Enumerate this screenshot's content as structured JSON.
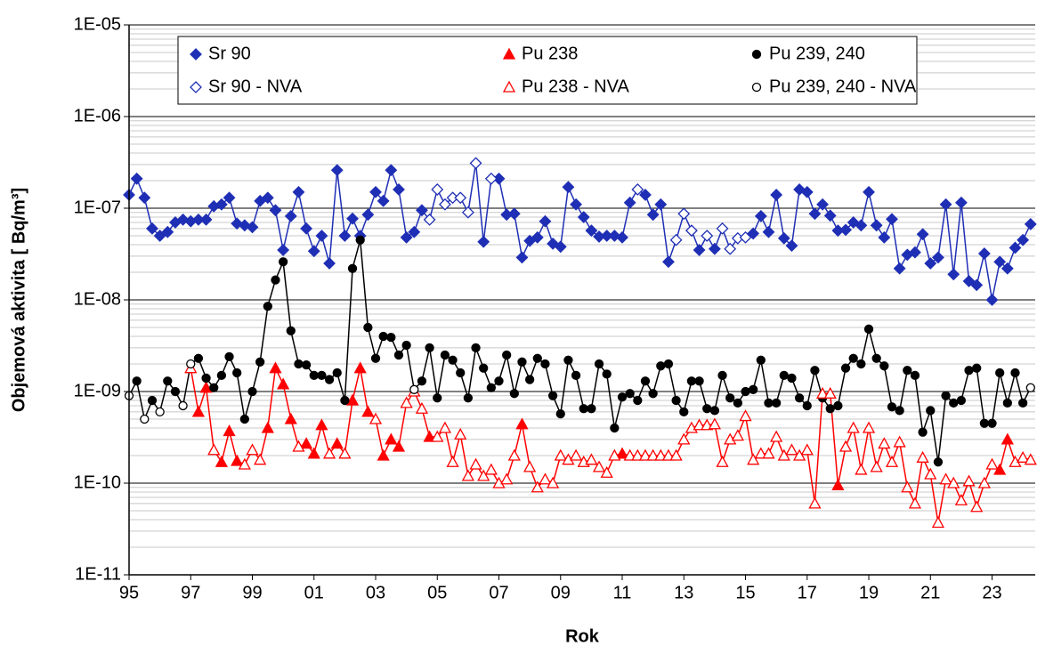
{
  "chart_data": {
    "type": "line",
    "y_label": "Objemová aktivita [ Bq/m³]",
    "x_label": "Rok",
    "log_y": true,
    "grid": true,
    "minor_grid": true,
    "legend": "top",
    "xlim": [
      1995,
      2024.4
    ],
    "ylim": [
      1e-11,
      1e-05
    ],
    "xticks": [
      {
        "value": 1995,
        "label": "95"
      },
      {
        "value": 1997,
        "label": "97"
      },
      {
        "value": 1999,
        "label": "99"
      },
      {
        "value": 2001,
        "label": "01"
      },
      {
        "value": 2003,
        "label": "03"
      },
      {
        "value": 2005,
        "label": "05"
      },
      {
        "value": 2007,
        "label": "07"
      },
      {
        "value": 2009,
        "label": "09"
      },
      {
        "value": 2011,
        "label": "11"
      },
      {
        "value": 2013,
        "label": "13"
      },
      {
        "value": 2015,
        "label": "15"
      },
      {
        "value": 2017,
        "label": "17"
      },
      {
        "value": 2019,
        "label": "19"
      },
      {
        "value": 2021,
        "label": "21"
      },
      {
        "value": 2023,
        "label": "23"
      }
    ],
    "yticks": [
      {
        "value": 1e-11,
        "label": "1E-11"
      },
      {
        "value": 1e-10,
        "label": "1E-10"
      },
      {
        "value": 1e-09,
        "label": "1E-09"
      },
      {
        "value": 1e-08,
        "label": "1E-08"
      },
      {
        "value": 1e-07,
        "label": "1E-07"
      },
      {
        "value": 1e-06,
        "label": "1E-06"
      },
      {
        "value": 1e-05,
        "label": "1E-05"
      }
    ],
    "x": [
      1995,
      1995.25,
      1995.5,
      1995.75,
      1996,
      1996.25,
      1996.5,
      1996.75,
      1997,
      1997.25,
      1997.5,
      1997.75,
      1998,
      1998.25,
      1998.5,
      1998.75,
      1999,
      1999.25,
      1999.5,
      1999.75,
      2000,
      2000.25,
      2000.5,
      2000.75,
      2001,
      2001.25,
      2001.5,
      2001.75,
      2002,
      2002.25,
      2002.5,
      2002.75,
      2003,
      2003.25,
      2003.5,
      2003.75,
      2004,
      2004.25,
      2004.5,
      2004.75,
      2005,
      2005.25,
      2005.5,
      2005.75,
      2006,
      2006.25,
      2006.5,
      2006.75,
      2007,
      2007.25,
      2007.5,
      2007.75,
      2008,
      2008.25,
      2008.5,
      2008.75,
      2009,
      2009.25,
      2009.5,
      2009.75,
      2010,
      2010.25,
      2010.5,
      2010.75,
      2011,
      2011.25,
      2011.5,
      2011.75,
      2012,
      2012.25,
      2012.5,
      2012.75,
      2013,
      2013.25,
      2013.5,
      2013.75,
      2014,
      2014.25,
      2014.5,
      2014.75,
      2015,
      2015.25,
      2015.5,
      2015.75,
      2016,
      2016.25,
      2016.5,
      2016.75,
      2017,
      2017.25,
      2017.5,
      2017.75,
      2018,
      2018.25,
      2018.5,
      2018.75,
      2019,
      2019.25,
      2019.5,
      2019.75,
      2020,
      2020.25,
      2020.5,
      2020.75,
      2021,
      2021.25,
      2021.5,
      2021.75,
      2022,
      2022.25,
      2022.5,
      2022.75,
      2023,
      2023.25,
      2023.5,
      2023.75,
      2024,
      2024.25
    ],
    "series": [
      {
        "name": "Sr 90",
        "color": "#1f2fb5",
        "marker": "diamond",
        "filled": true,
        "values": [
          1.4e-07,
          2.1e-07,
          1.3e-07,
          6e-08,
          5e-08,
          5.5e-08,
          7e-08,
          7.5e-08,
          7.2e-08,
          7.5e-08,
          7.5e-08,
          1.05e-07,
          1.1e-07,
          1.3e-07,
          6.8e-08,
          6.5e-08,
          6.2e-08,
          1.2e-07,
          1.3e-07,
          9.5e-08,
          3.5e-08,
          8.2e-08,
          1.5e-07,
          6e-08,
          3.4e-08,
          5e-08,
          2.5e-08,
          2.6e-07,
          5e-08,
          7.7e-08,
          5e-08,
          8.5e-08,
          1.5e-07,
          1.2e-07,
          2.6e-07,
          1.6e-07,
          4.8e-08,
          5.5e-08,
          9.5e-08,
          null,
          null,
          null,
          null,
          null,
          null,
          null,
          4.3e-08,
          null,
          2.1e-07,
          8.5e-08,
          8.7e-08,
          2.9e-08,
          4.4e-08,
          4.8e-08,
          7.2e-08,
          4.1e-08,
          3.8e-08,
          1.7e-07,
          1.1e-07,
          8e-08,
          5.7e-08,
          4.9e-08,
          5e-08,
          5e-08,
          4.8e-08,
          1.15e-07,
          null,
          1.4e-07,
          8.5e-08,
          1.1e-07,
          2.6e-08,
          null,
          null,
          null,
          3.5e-08,
          null,
          3.6e-08,
          null,
          null,
          null,
          null,
          5.3e-08,
          8.2e-08,
          5.5e-08,
          1.4e-07,
          4.7e-08,
          3.9e-08,
          1.6e-07,
          1.5e-07,
          8.7e-08,
          1.1e-07,
          8.3e-08,
          5.7e-08,
          5.8e-08,
          7e-08,
          6.5e-08,
          1.5e-07,
          6.5e-08,
          4.8e-08,
          7.6e-08,
          2.2e-08,
          3.1e-08,
          3.3e-08,
          5.2e-08,
          2.5e-08,
          2.9e-08,
          1.1e-07,
          1.9e-08,
          1.15e-07,
          1.6e-08,
          1.45e-08,
          3.2e-08,
          1e-08,
          2.6e-08,
          2.2e-08,
          3.7e-08,
          4.5e-08,
          6.7e-08
        ]
      },
      {
        "name": "Pu 238",
        "color": "#ff0000",
        "marker": "triangle",
        "filled": true,
        "values": [
          null,
          null,
          null,
          null,
          null,
          null,
          null,
          null,
          null,
          6e-10,
          1.1e-09,
          null,
          1.7e-10,
          3.7e-10,
          1.75e-10,
          null,
          null,
          null,
          4e-10,
          1.8e-09,
          1.2e-09,
          5e-10,
          null,
          2.7e-10,
          2.1e-10,
          4.3e-10,
          null,
          2.7e-10,
          null,
          8e-10,
          1.8e-09,
          6e-10,
          null,
          2e-10,
          3e-10,
          2.5e-10,
          null,
          null,
          null,
          3.2e-10,
          null,
          null,
          null,
          null,
          null,
          null,
          null,
          null,
          null,
          null,
          null,
          4.4e-10,
          null,
          null,
          null,
          null,
          null,
          null,
          null,
          null,
          null,
          null,
          null,
          null,
          2.1e-10,
          null,
          null,
          null,
          null,
          null,
          null,
          null,
          null,
          null,
          null,
          null,
          null,
          null,
          null,
          null,
          null,
          null,
          null,
          null,
          null,
          null,
          null,
          null,
          null,
          null,
          null,
          null,
          9.5e-11,
          null,
          null,
          null,
          null,
          null,
          null,
          null,
          null,
          null,
          null,
          null,
          null,
          null,
          null,
          null,
          null,
          null,
          null,
          null,
          null,
          1.4e-10,
          3e-10,
          null,
          null,
          null
        ]
      },
      {
        "name": "Pu 239, 240",
        "color": "#000000",
        "marker": "circle",
        "filled": true,
        "values": [
          null,
          1.3e-09,
          null,
          8e-10,
          null,
          1.3e-09,
          1e-09,
          null,
          null,
          2.3e-09,
          1.4e-09,
          1.1e-09,
          1.5e-09,
          2.4e-09,
          1.6e-09,
          5e-10,
          1e-09,
          2.1e-09,
          8.5e-09,
          1.65e-08,
          2.6e-08,
          4.6e-09,
          2e-09,
          1.95e-09,
          1.5e-09,
          1.5e-09,
          1.35e-09,
          1.6e-09,
          8e-10,
          2.2e-08,
          4.5e-08,
          5e-09,
          2.3e-09,
          4e-09,
          3.9e-09,
          2.5e-09,
          3.2e-09,
          null,
          1.3e-09,
          3e-09,
          8.5e-10,
          2.5e-09,
          2.2e-09,
          1.6e-09,
          8.5e-10,
          3e-09,
          1.8e-09,
          1.1e-09,
          1.3e-09,
          2.5e-09,
          9.5e-10,
          2.1e-09,
          1.35e-09,
          2.3e-09,
          2e-09,
          9e-10,
          5.7e-10,
          2.2e-09,
          1.5e-09,
          6.5e-10,
          6.5e-10,
          2e-09,
          1.55e-09,
          4e-10,
          8.7e-10,
          9.5e-10,
          8e-10,
          1.3e-09,
          9.5e-10,
          1.9e-09,
          2e-09,
          8e-10,
          6e-10,
          1.3e-09,
          1.3e-09,
          6.5e-10,
          6.2e-10,
          1.5e-09,
          8.5e-10,
          7.5e-10,
          1e-09,
          1.05e-09,
          2.2e-09,
          7.5e-10,
          7.5e-10,
          1.5e-09,
          1.4e-09,
          8.5e-10,
          7e-10,
          1.7e-09,
          8.5e-10,
          6.5e-10,
          7e-10,
          1.8e-09,
          2.3e-09,
          2e-09,
          4.8e-09,
          2.3e-09,
          1.9e-09,
          6.8e-10,
          6.2e-10,
          1.7e-09,
          1.5e-09,
          3.6e-10,
          6.2e-10,
          1.7e-10,
          9e-10,
          7.5e-10,
          8e-10,
          1.7e-09,
          1.8e-09,
          4.5e-10,
          4.5e-10,
          1.6e-09,
          7.5e-10,
          1.6e-09,
          7.5e-10,
          null
        ]
      },
      {
        "name": "Sr 90 - NVA",
        "color": "#1f2fb5",
        "marker": "diamond",
        "filled": false,
        "values": [
          null,
          null,
          null,
          null,
          null,
          null,
          null,
          null,
          null,
          null,
          null,
          null,
          null,
          null,
          null,
          null,
          null,
          null,
          null,
          null,
          null,
          null,
          null,
          null,
          null,
          null,
          null,
          null,
          null,
          null,
          null,
          null,
          null,
          null,
          null,
          null,
          null,
          null,
          null,
          7.5e-08,
          1.6e-07,
          1.1e-07,
          1.3e-07,
          1.3e-07,
          9e-08,
          3.1e-07,
          null,
          2.1e-07,
          null,
          null,
          null,
          null,
          null,
          null,
          null,
          null,
          null,
          null,
          null,
          null,
          null,
          null,
          null,
          null,
          null,
          null,
          1.6e-07,
          null,
          null,
          null,
          null,
          4.5e-08,
          8.7e-08,
          5.7e-08,
          null,
          5e-08,
          null,
          6e-08,
          3.6e-08,
          4.7e-08,
          4.8e-08,
          null,
          null,
          null,
          null,
          null,
          null,
          null,
          null,
          null,
          null,
          null,
          null,
          null,
          null,
          null,
          null,
          null,
          null,
          null,
          null,
          null,
          null,
          null,
          null,
          null,
          null,
          null,
          null,
          null,
          null,
          null,
          null,
          null,
          null,
          null,
          null,
          null
        ]
      },
      {
        "name": "Pu 238 - NVA",
        "color": "#ff0000",
        "marker": "triangle",
        "filled": false,
        "values": [
          null,
          null,
          null,
          null,
          null,
          null,
          null,
          null,
          1.8e-09,
          null,
          null,
          2.3e-10,
          null,
          null,
          null,
          1.6e-10,
          2.3e-10,
          1.8e-10,
          null,
          null,
          null,
          null,
          2.5e-10,
          null,
          null,
          null,
          2.1e-10,
          null,
          2.1e-10,
          null,
          null,
          null,
          5e-10,
          null,
          null,
          null,
          7.5e-10,
          1e-09,
          6.5e-10,
          null,
          3.2e-10,
          4e-10,
          1.7e-10,
          3.4e-10,
          1.2e-10,
          1.6e-10,
          1.2e-10,
          1.4e-10,
          1e-10,
          1.1e-10,
          2e-10,
          null,
          1.5e-10,
          9e-11,
          1.1e-10,
          1e-10,
          2e-10,
          1.8e-10,
          2e-10,
          1.7e-10,
          1.8e-10,
          1.5e-10,
          1.3e-10,
          2e-10,
          null,
          2e-10,
          2e-10,
          2e-10,
          2e-10,
          2e-10,
          2e-10,
          2e-10,
          3e-10,
          4e-10,
          4.3e-10,
          4.3e-10,
          4.4e-10,
          1.7e-10,
          3e-10,
          3.3e-10,
          5.4e-10,
          1.8e-10,
          2.1e-10,
          2.1e-10,
          3.2e-10,
          2e-10,
          2.3e-10,
          2e-10,
          2.3e-10,
          6e-11,
          9.5e-10,
          9.5e-10,
          null,
          2.5e-10,
          4e-10,
          1.4e-10,
          4e-10,
          1.5e-10,
          2.7e-10,
          1.7e-10,
          2.8e-10,
          9e-11,
          6e-11,
          1.9e-10,
          1.25e-10,
          3.7e-11,
          1.1e-10,
          1e-10,
          6.5e-11,
          1.05e-10,
          5.5e-11,
          1e-10,
          1.6e-10,
          null,
          null,
          1.7e-10,
          1.9e-10,
          1.8e-10
        ]
      },
      {
        "name": "Pu 239, 240 - NVA",
        "color": "#000000",
        "marker": "circle",
        "filled": false,
        "values": [
          9e-10,
          null,
          5e-10,
          null,
          6e-10,
          null,
          null,
          7e-10,
          2e-09,
          null,
          null,
          null,
          null,
          null,
          null,
          null,
          null,
          null,
          null,
          null,
          null,
          null,
          null,
          null,
          null,
          null,
          null,
          null,
          null,
          null,
          null,
          null,
          null,
          null,
          null,
          null,
          null,
          1.05e-09,
          null,
          null,
          null,
          null,
          null,
          null,
          null,
          null,
          null,
          null,
          null,
          null,
          null,
          null,
          null,
          null,
          null,
          null,
          null,
          null,
          null,
          null,
          null,
          null,
          null,
          null,
          null,
          null,
          null,
          null,
          null,
          null,
          null,
          null,
          null,
          null,
          null,
          null,
          null,
          null,
          null,
          null,
          null,
          null,
          null,
          null,
          null,
          null,
          null,
          null,
          null,
          null,
          null,
          null,
          null,
          null,
          null,
          null,
          null,
          null,
          null,
          null,
          null,
          null,
          null,
          null,
          null,
          null,
          null,
          null,
          null,
          null,
          null,
          null,
          null,
          null,
          null,
          null,
          null,
          1.1e-09
        ]
      }
    ]
  }
}
